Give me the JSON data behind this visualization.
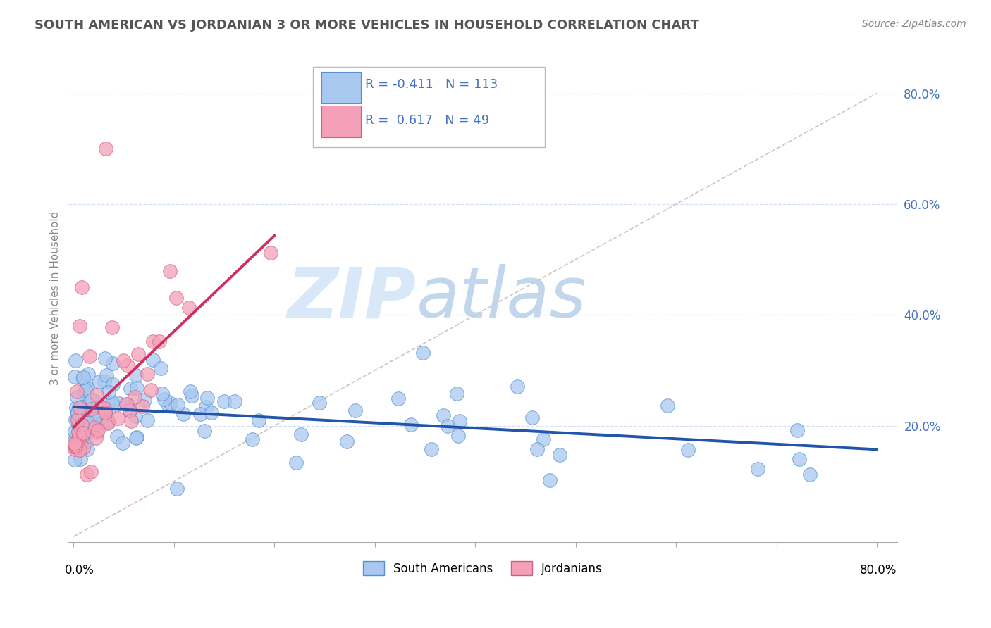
{
  "title": "SOUTH AMERICAN VS JORDANIAN 3 OR MORE VEHICLES IN HOUSEHOLD CORRELATION CHART",
  "source": "Source: ZipAtlas.com",
  "ylabel": "3 or more Vehicles in Household",
  "right_yticks": [
    "80.0%",
    "60.0%",
    "40.0%",
    "20.0%"
  ],
  "right_ytick_vals": [
    0.8,
    0.6,
    0.4,
    0.2
  ],
  "legend_label1": "South Americans",
  "legend_label2": "Jordanians",
  "r1": -0.411,
  "n1": 113,
  "r2": 0.617,
  "n2": 49,
  "color_blue": "#A8C8F0",
  "color_pink": "#F4A0B8",
  "edge_blue": "#5590D0",
  "edge_pink": "#D06080",
  "line_blue": "#2255AA",
  "line_pink": "#D03060",
  "dash_line_color": "#D8C0C0",
  "grid_color": "#C8D8F0",
  "title_color": "#555555",
  "source_color": "#888888",
  "ylabel_color": "#888888",
  "ytick_color": "#4472C4",
  "watermark_zip_color": "#D8E8F8",
  "watermark_atlas_color": "#B8D0E8"
}
